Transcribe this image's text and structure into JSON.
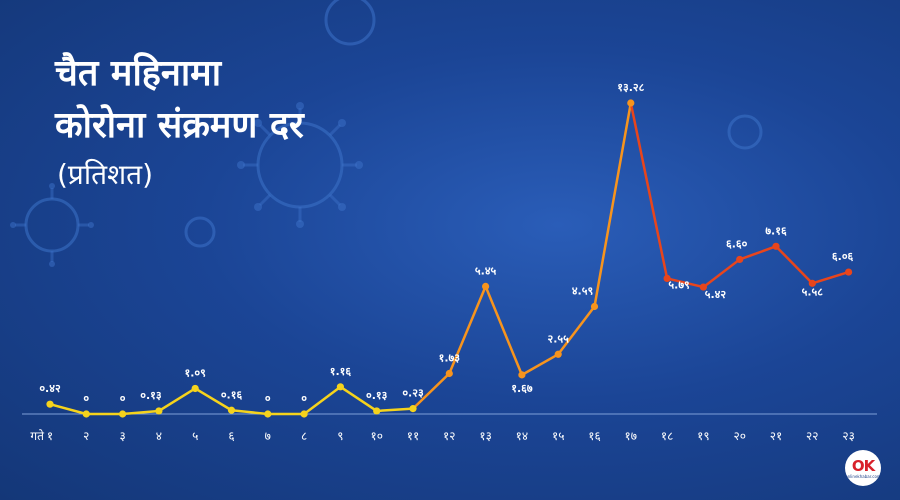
{
  "title": {
    "line1": "चैत महिनामा",
    "line2": "कोरोना संक्रमण दर",
    "line3": "(प्रतिशत)"
  },
  "colors": {
    "early": "#f5d31c",
    "mid": "#f7941d",
    "late": "#e8451c",
    "axis": "#7e9fd8",
    "text": "#ffffff"
  },
  "logo": {
    "text": "OK",
    "subtext": "onlinekhabar.com"
  },
  "chart_data": {
    "type": "line",
    "title": "चैत महिनामा कोरोना संक्रमण दर (प्रतिशत)",
    "xlabel_prefix": "गते",
    "x": [
      "१",
      "२",
      "३",
      "४",
      "५",
      "६",
      "७",
      "८",
      "९",
      "१०",
      "११",
      "१२",
      "१३",
      "१४",
      "१५",
      "१६",
      "१७",
      "१८",
      "१९",
      "२०",
      "२१",
      "२२",
      "२३"
    ],
    "values": [
      0.42,
      0,
      0,
      0.13,
      1.09,
      0.16,
      0,
      0,
      1.16,
      0.13,
      0.23,
      1.73,
      5.45,
      1.67,
      2.55,
      4.59,
      13.28,
      5.79,
      5.42,
      6.6,
      7.16,
      5.58,
      6.06
    ],
    "value_labels": [
      "०.४२",
      "०",
      "०",
      "०.१३",
      "१.०९",
      "०.१६",
      "०",
      "०",
      "१.१६",
      "०.१३",
      "०.२३",
      "१.७३",
      "५.४५",
      "१.६७",
      "२.५५",
      "४.५९",
      "१३.२८",
      "५.७९",
      "५.४२",
      "६.६०",
      "७.१६",
      "५.५८",
      "६.०६"
    ],
    "ylim": [
      0,
      13.28
    ],
    "grid": false,
    "legend": "none"
  }
}
